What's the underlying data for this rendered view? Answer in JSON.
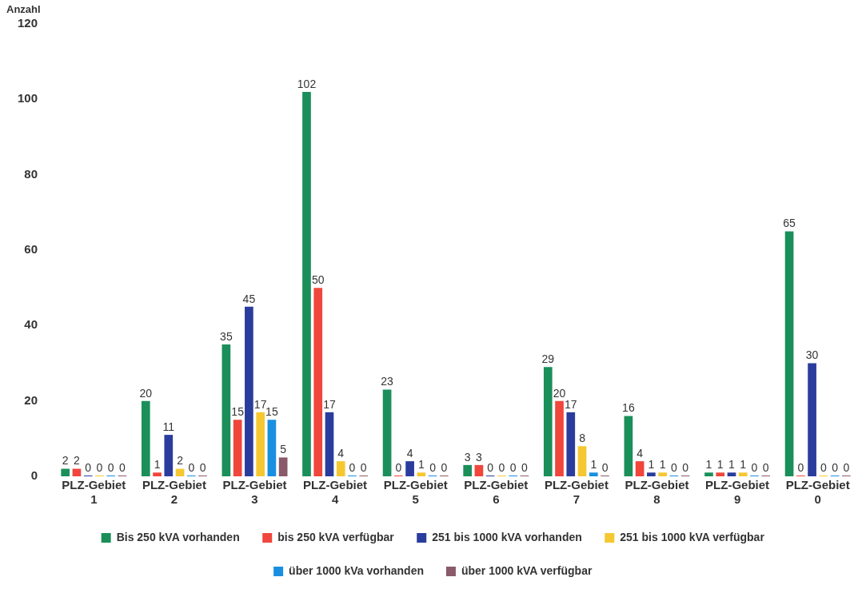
{
  "chart_data": {
    "type": "bar",
    "ylabel": "Anzahl",
    "categories": [
      "PLZ-Gebiet 1",
      "PLZ-Gebiet 2",
      "PLZ-Gebiet 3",
      "PLZ-Gebiet 4",
      "PLZ-Gebiet 5",
      "PLZ-Gebiet 6",
      "PLZ-Gebiet 7",
      "PLZ-Gebiet 8",
      "PLZ-Gebiet 9",
      "PLZ-Gebiet 0"
    ],
    "series": [
      {
        "name": "Bis 250 kVA vorhanden",
        "color": "#1a8f5a",
        "values": [
          2,
          20,
          35,
          102,
          23,
          3,
          29,
          16,
          1,
          65
        ]
      },
      {
        "name": "bis 250 kVA verfügbar",
        "color": "#f0463c",
        "values": [
          2,
          1,
          15,
          50,
          0,
          3,
          20,
          4,
          1,
          0
        ]
      },
      {
        "name": "251 bis 1000 kVA vorhanden",
        "color": "#2a3d9c",
        "values": [
          0,
          11,
          45,
          17,
          4,
          0,
          17,
          1,
          1,
          30
        ]
      },
      {
        "name": "251 bis 1000 kVA verfügbar",
        "color": "#f5c832",
        "values": [
          0,
          2,
          17,
          4,
          1,
          0,
          8,
          1,
          1,
          0
        ]
      },
      {
        "name": "über 1000 kVa vorhanden",
        "color": "#1a8fe0",
        "values": [
          0,
          0,
          15,
          0,
          0,
          0,
          1,
          0,
          0,
          0
        ]
      },
      {
        "name": "über 1000 kVA verfügbar",
        "color": "#8a5a6a",
        "values": [
          0,
          0,
          5,
          0,
          0,
          0,
          0,
          0,
          0,
          0
        ]
      }
    ],
    "ylim": [
      0,
      120
    ],
    "yticks": [
      0,
      20,
      40,
      60,
      80,
      100,
      120
    ],
    "grid": false,
    "legend": "bottom",
    "data_labels": true
  }
}
